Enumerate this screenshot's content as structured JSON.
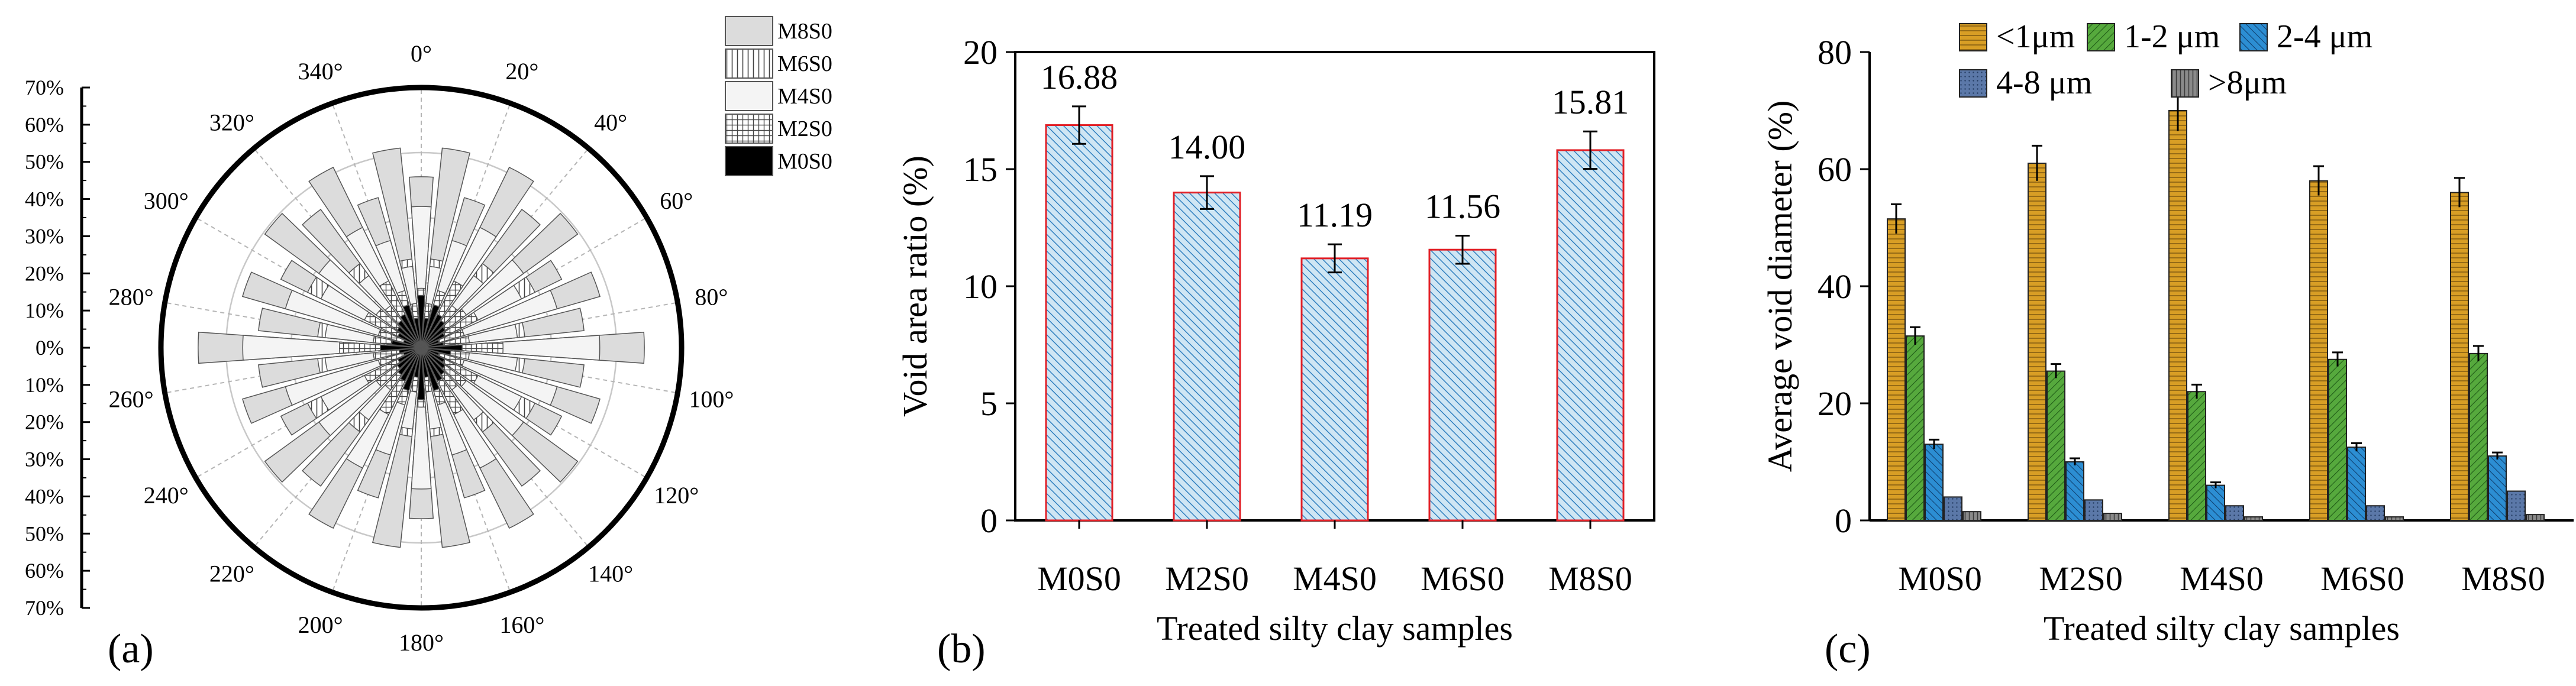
{
  "chart_data": [
    {
      "panel": "(a)",
      "type": "polar-rose",
      "radial_ticks": [
        "70%",
        "60%",
        "50%",
        "40%",
        "30%",
        "20%",
        "10%",
        "0%",
        "10%",
        "20%",
        "30%",
        "40%",
        "50%",
        "60%",
        "70%"
      ],
      "angle_labels": [
        "0°",
        "20°",
        "40°",
        "60°",
        "80°",
        "100°",
        "120°",
        "140°",
        "160°",
        "180°",
        "200°",
        "220°",
        "240°",
        "260°",
        "280°",
        "300°",
        "320°",
        "340°"
      ],
      "bin_centers_deg": [
        0,
        10,
        20,
        30,
        40,
        50,
        60,
        70,
        80,
        90,
        100,
        110,
        120,
        130,
        140,
        150,
        160,
        170,
        180,
        190,
        200,
        210,
        220,
        230,
        240,
        250,
        260,
        270,
        280,
        290,
        300,
        310,
        320,
        330,
        340,
        350
      ],
      "series": [
        {
          "name": "M8S0",
          "pattern": "gray",
          "values": [
            46,
            54,
            42,
            54,
            46,
            52,
            42,
            50,
            44,
            60,
            44,
            50,
            42,
            52,
            46,
            54,
            42,
            54,
            46,
            54,
            42,
            54,
            46,
            52,
            42,
            50,
            44,
            60,
            44,
            50,
            42,
            52,
            46,
            54,
            42,
            54
          ]
        },
        {
          "name": "M6S0",
          "pattern": "vertical",
          "values": [
            35,
            24,
            28,
            34,
            28,
            30,
            34,
            26,
            28,
            42,
            28,
            26,
            34,
            30,
            28,
            34,
            28,
            24,
            35,
            24,
            28,
            34,
            28,
            30,
            34,
            26,
            28,
            42,
            28,
            26,
            34,
            30,
            28,
            34,
            28,
            24
          ]
        },
        {
          "name": "M4S0",
          "pattern": "light",
          "values": [
            38,
            22,
            30,
            36,
            24,
            34,
            30,
            38,
            26,
            48,
            26,
            38,
            30,
            34,
            24,
            36,
            30,
            22,
            38,
            22,
            30,
            36,
            24,
            34,
            30,
            38,
            26,
            48,
            26,
            38,
            30,
            34,
            24,
            36,
            30,
            22
          ]
        },
        {
          "name": "M2S0",
          "pattern": "grid",
          "values": [
            16,
            12,
            16,
            20,
            14,
            15,
            17,
            12,
            13,
            22,
            13,
            12,
            17,
            15,
            14,
            20,
            16,
            12,
            16,
            12,
            16,
            20,
            14,
            15,
            17,
            12,
            13,
            22,
            13,
            12,
            17,
            15,
            14,
            20,
            16,
            12
          ]
        },
        {
          "name": "M0S0",
          "pattern": "black",
          "values": [
            14,
            8,
            12,
            10,
            9,
            8,
            7,
            5,
            6,
            11,
            8,
            5,
            7,
            8,
            9,
            10,
            12,
            8,
            14,
            8,
            12,
            10,
            9,
            8,
            7,
            5,
            6,
            11,
            8,
            5,
            7,
            8,
            9,
            10,
            12,
            8
          ]
        }
      ],
      "legend": [
        "M8S0",
        "M6S0",
        "M4S0",
        "M2S0",
        "M0S0"
      ],
      "rmax": 70
    },
    {
      "panel": "(b)",
      "type": "bar",
      "categories": [
        "M0S0",
        "M2S0",
        "M4S0",
        "M6S0",
        "M8S0"
      ],
      "values": [
        16.88,
        14.0,
        11.19,
        11.56,
        15.81
      ],
      "value_labels": [
        "16.88",
        "14.00",
        "11.19",
        "11.56",
        "15.81"
      ],
      "errors": [
        0.8,
        0.7,
        0.6,
        0.6,
        0.8
      ],
      "xlabel": "Treated silty clay samples",
      "ylabel": "Void area ratio (%)",
      "ylim": [
        0,
        20
      ],
      "yticks": [
        0,
        5,
        10,
        15,
        20
      ],
      "bar_fill": "#cfe6f4",
      "hatch": "#2f7fbf",
      "bar_edge": "#e21f26"
    },
    {
      "panel": "(c)",
      "type": "bar",
      "categories": [
        "M0S0",
        "M2S0",
        "M4S0",
        "M6S0",
        "M8S0"
      ],
      "series": [
        {
          "name": "<1μm",
          "color": "#d89e25",
          "values": [
            51.5,
            61,
            70,
            58,
            56
          ],
          "errors": [
            2.5,
            3,
            3.5,
            2.5,
            2.5
          ]
        },
        {
          "name": "1-2 μm",
          "color": "#56a93d",
          "values": [
            31.5,
            25.5,
            22,
            27.5,
            28.5
          ],
          "errors": [
            1.5,
            1.2,
            1.2,
            1.2,
            1.3
          ]
        },
        {
          "name": "2-4 μm",
          "color": "#2c8ed3",
          "values": [
            13,
            10,
            6,
            12.5,
            11
          ],
          "errors": [
            0.8,
            0.6,
            0.5,
            0.7,
            0.6
          ]
        },
        {
          "name": "4-8 μm",
          "color": "#5b78a8",
          "values": [
            4,
            3.5,
            2.5,
            2.5,
            5
          ],
          "errors": [
            0,
            0,
            0,
            0,
            0
          ]
        },
        {
          "name": ">8μm",
          "color": "#8a8a8a",
          "values": [
            1.5,
            1.2,
            0.6,
            0.6,
            1.0
          ],
          "errors": [
            0,
            0,
            0,
            0,
            0
          ]
        }
      ],
      "xlabel": "Treated silty clay samples",
      "ylabel": "Average void diameter (%)",
      "ylim": [
        0,
        80
      ],
      "yticks": [
        0,
        20,
        40,
        60,
        80
      ]
    }
  ]
}
